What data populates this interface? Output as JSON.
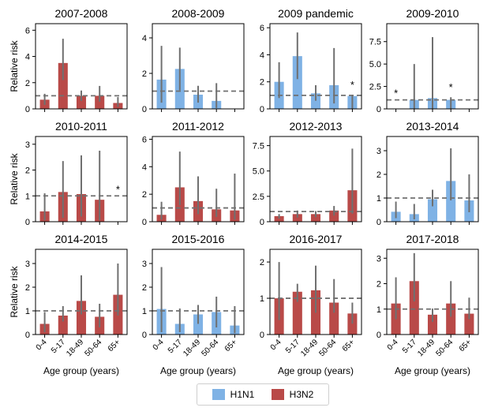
{
  "colors": {
    "H1N1": "#7fb2e5",
    "H3N2": "#b94a48",
    "errorbar": "#707070",
    "refline": "#707070"
  },
  "legend": {
    "h1n1_label": "H1N1",
    "h3n2_label": "H3N2"
  },
  "chart_data": [
    {
      "type": "bar",
      "title": "2007-2008",
      "ylim": [
        0,
        6.5
      ],
      "yticks": [
        0,
        2,
        4,
        6
      ],
      "categories": [
        "0-4",
        "5-17",
        "18-49",
        "50-64",
        "65+"
      ],
      "subtype": [
        "H3N2",
        "H3N2",
        "H3N2",
        "H3N2",
        "H3N2"
      ],
      "values": [
        0.7,
        3.5,
        1.0,
        1.0,
        0.45
      ],
      "ci_low": [
        0.3,
        2.2,
        0.6,
        0.55,
        0.15
      ],
      "ci_high": [
        1.15,
        5.35,
        1.4,
        1.75,
        0.9
      ],
      "star": [
        null,
        null,
        null,
        null,
        null
      ],
      "ref": 1,
      "ylabel": "Relative risk",
      "xlabel": ""
    },
    {
      "type": "bar",
      "title": "2008-2009",
      "ylim": [
        0,
        4.8
      ],
      "yticks": [
        0,
        2,
        4
      ],
      "categories": [
        "0-4",
        "5-17",
        "18-49",
        "50-64",
        "65+"
      ],
      "subtype": [
        "H1N1",
        "H1N1",
        "H1N1",
        "H1N1",
        null
      ],
      "values": [
        1.65,
        2.25,
        0.8,
        0.45,
        null
      ],
      "ci_low": [
        0.35,
        1.05,
        0.35,
        0.05,
        null
      ],
      "ci_high": [
        3.55,
        3.45,
        1.3,
        1.45,
        null
      ],
      "star": [
        null,
        null,
        null,
        null,
        null
      ],
      "ref": 1,
      "ylabel": "",
      "xlabel": ""
    },
    {
      "type": "bar",
      "title": "2009 pandemic",
      "ylim": [
        0,
        6.3
      ],
      "yticks": [
        0,
        2,
        4,
        6
      ],
      "categories": [
        "0-4",
        "5-17",
        "18-49",
        "50-64",
        "65+"
      ],
      "subtype": [
        "H1N1",
        "H1N1",
        "H1N1",
        "H1N1",
        "H1N1"
      ],
      "values": [
        2.0,
        3.9,
        1.15,
        1.75,
        0.95
      ],
      "ci_low": [
        0.8,
        2.2,
        0.6,
        0.4,
        0.0
      ],
      "ci_high": [
        3.45,
        5.65,
        1.75,
        4.5,
        1.05
      ],
      "star": [
        null,
        null,
        null,
        null,
        "*"
      ],
      "ref": 1,
      "ylabel": "",
      "xlabel": ""
    },
    {
      "type": "bar",
      "title": "2009-2010",
      "ylim": [
        0,
        9.5
      ],
      "yticks": [
        0,
        2.5,
        5,
        7.5
      ],
      "ytick_labels": [
        "0",
        "2.5",
        "5.0",
        "7.5"
      ],
      "categories": [
        "0-4",
        "5-17",
        "18-49",
        "50-64",
        "65+"
      ],
      "subtype": [
        null,
        "H1N1",
        "H1N1",
        "H1N1",
        null
      ],
      "values": [
        null,
        1.0,
        1.2,
        1.0,
        null
      ],
      "ci_low": [
        null,
        0.0,
        0.0,
        0.0,
        null
      ],
      "ci_high": [
        null,
        5.0,
        8.0,
        1.3,
        null
      ],
      "star": [
        "*",
        null,
        null,
        "*",
        null
      ],
      "ref": 1,
      "ylabel": "",
      "xlabel": ""
    },
    {
      "type": "bar",
      "title": "2010-2011",
      "ylim": [
        0,
        3.3
      ],
      "yticks": [
        0,
        1,
        2,
        3
      ],
      "categories": [
        "0-4",
        "5-17",
        "18-49",
        "50-64",
        "65+"
      ],
      "subtype": [
        "H3N2",
        "H3N2",
        "H3N2",
        "H3N2",
        null
      ],
      "values": [
        0.4,
        1.15,
        1.07,
        0.85,
        null
      ],
      "ci_low": [
        0.05,
        0.15,
        0.2,
        0.05,
        null
      ],
      "ci_high": [
        1.1,
        2.35,
        2.57,
        2.75,
        null
      ],
      "star": [
        null,
        null,
        null,
        null,
        "*"
      ],
      "ref": 1,
      "ylabel": "Relative risk",
      "xlabel": ""
    },
    {
      "type": "bar",
      "title": "2011-2012",
      "ylim": [
        0,
        6.2
      ],
      "yticks": [
        0,
        2,
        4,
        6
      ],
      "categories": [
        "0-4",
        "5-17",
        "18-49",
        "50-64",
        "65+"
      ],
      "subtype": [
        "H3N2",
        "H3N2",
        "H3N2",
        "H3N2",
        "H3N2"
      ],
      "values": [
        0.5,
        2.5,
        1.5,
        0.9,
        0.82
      ],
      "ci_low": [
        0.15,
        1.2,
        0.55,
        0.35,
        0.15
      ],
      "ci_high": [
        1.45,
        5.1,
        3.3,
        2.4,
        3.5
      ],
      "star": [
        null,
        null,
        null,
        null,
        null
      ],
      "ref": 1,
      "ylabel": "",
      "xlabel": ""
    },
    {
      "type": "bar",
      "title": "2012-2013",
      "ylim": [
        0,
        8.4
      ],
      "yticks": [
        0,
        2.5,
        5,
        7.5
      ],
      "ytick_labels": [
        "0",
        "2.5",
        "5.0",
        "7.5"
      ],
      "categories": [
        "0-4",
        "5-17",
        "18-49",
        "50-64",
        "65+"
      ],
      "subtype": [
        "H3N2",
        "H3N2",
        "H3N2",
        "H3N2",
        "H3N2"
      ],
      "values": [
        0.55,
        0.75,
        0.75,
        1.1,
        3.1
      ],
      "ci_low": [
        0.3,
        0.4,
        0.45,
        0.6,
        0.8
      ],
      "ci_high": [
        0.75,
        1.1,
        1.05,
        1.55,
        7.2
      ],
      "star": [
        null,
        null,
        null,
        null,
        null
      ],
      "ref": 1,
      "ylabel": "",
      "xlabel": ""
    },
    {
      "type": "bar",
      "title": "2013-2014",
      "ylim": [
        0,
        3.6
      ],
      "yticks": [
        0,
        1,
        2,
        3
      ],
      "categories": [
        "0-4",
        "5-17",
        "18-49",
        "50-64",
        "65+"
      ],
      "subtype": [
        "H1N1",
        "H1N1",
        "H1N1",
        "H1N1",
        "H1N1"
      ],
      "values": [
        0.42,
        0.32,
        0.95,
        1.72,
        0.9
      ],
      "ci_low": [
        0.15,
        0.1,
        0.65,
        0.9,
        0.4
      ],
      "ci_high": [
        0.85,
        0.75,
        1.35,
        3.1,
        2.0
      ],
      "star": [
        null,
        null,
        null,
        null,
        null
      ],
      "ref": 1,
      "ylabel": "",
      "xlabel": ""
    },
    {
      "type": "bar",
      "title": "2014-2015",
      "ylim": [
        0,
        3.6
      ],
      "yticks": [
        0,
        1,
        2,
        3
      ],
      "categories": [
        "0-4",
        "5-17",
        "18-49",
        "50-64",
        "65+"
      ],
      "subtype": [
        "H3N2",
        "H3N2",
        "H3N2",
        "H3N2",
        "H3N2"
      ],
      "values": [
        0.45,
        0.8,
        1.42,
        0.75,
        1.68
      ],
      "ci_low": [
        0.1,
        0.55,
        0.85,
        0.3,
        0.8
      ],
      "ci_high": [
        0.95,
        1.2,
        2.5,
        1.3,
        3.0
      ],
      "star": [
        null,
        null,
        null,
        null,
        null
      ],
      "ref": 1,
      "ylabel": "Relative risk",
      "xlabel": "Age group (years)"
    },
    {
      "type": "bar",
      "title": "2015-2016",
      "ylim": [
        0,
        3.6
      ],
      "yticks": [
        0,
        1,
        2,
        3
      ],
      "categories": [
        "0-4",
        "5-17",
        "18-49",
        "50-64",
        "65+"
      ],
      "subtype": [
        "H1N1",
        "H1N1",
        "H1N1",
        "H1N1",
        "H1N1"
      ],
      "values": [
        1.08,
        0.45,
        0.85,
        0.95,
        0.38
      ],
      "ci_low": [
        0.1,
        0.1,
        0.45,
        0.3,
        0.05
      ],
      "ci_high": [
        2.85,
        1.1,
        1.25,
        1.6,
        1.2
      ],
      "star": [
        null,
        null,
        null,
        null,
        null
      ],
      "ref": 1,
      "ylabel": "",
      "xlabel": "Age group (years)"
    },
    {
      "type": "bar",
      "title": "2016-2017",
      "ylim": [
        0,
        2.35
      ],
      "yticks": [
        0,
        1,
        2
      ],
      "categories": [
        "0-4",
        "5-17",
        "18-49",
        "50-64",
        "65+"
      ],
      "subtype": [
        "H3N2",
        "H3N2",
        "H3N2",
        "H3N2",
        "H3N2"
      ],
      "values": [
        1.0,
        1.18,
        1.22,
        0.88,
        0.58
      ],
      "ci_low": [
        0.4,
        0.9,
        0.6,
        0.6,
        0.3
      ],
      "ci_high": [
        2.0,
        1.4,
        1.9,
        1.53,
        0.88
      ],
      "star": [
        null,
        null,
        null,
        null,
        null
      ],
      "ref": 1,
      "ylabel": "",
      "xlabel": "Age group (years)"
    },
    {
      "type": "bar",
      "title": "2017-2018",
      "ylim": [
        0,
        3.35
      ],
      "yticks": [
        0,
        1,
        2,
        3
      ],
      "categories": [
        "0-4",
        "5-17",
        "18-49",
        "50-64",
        "65+"
      ],
      "subtype": [
        "H3N2",
        "H3N2",
        "H3N2",
        "H3N2",
        "H3N2"
      ],
      "values": [
        1.22,
        2.1,
        0.78,
        1.22,
        0.82
      ],
      "ci_low": [
        0.6,
        1.3,
        0.5,
        0.7,
        0.6
      ],
      "ci_high": [
        2.25,
        3.2,
        1.02,
        2.1,
        1.45
      ],
      "star": [
        null,
        null,
        null,
        null,
        null
      ],
      "ref": 1,
      "ylabel": "",
      "xlabel": "Age group (years)"
    }
  ]
}
